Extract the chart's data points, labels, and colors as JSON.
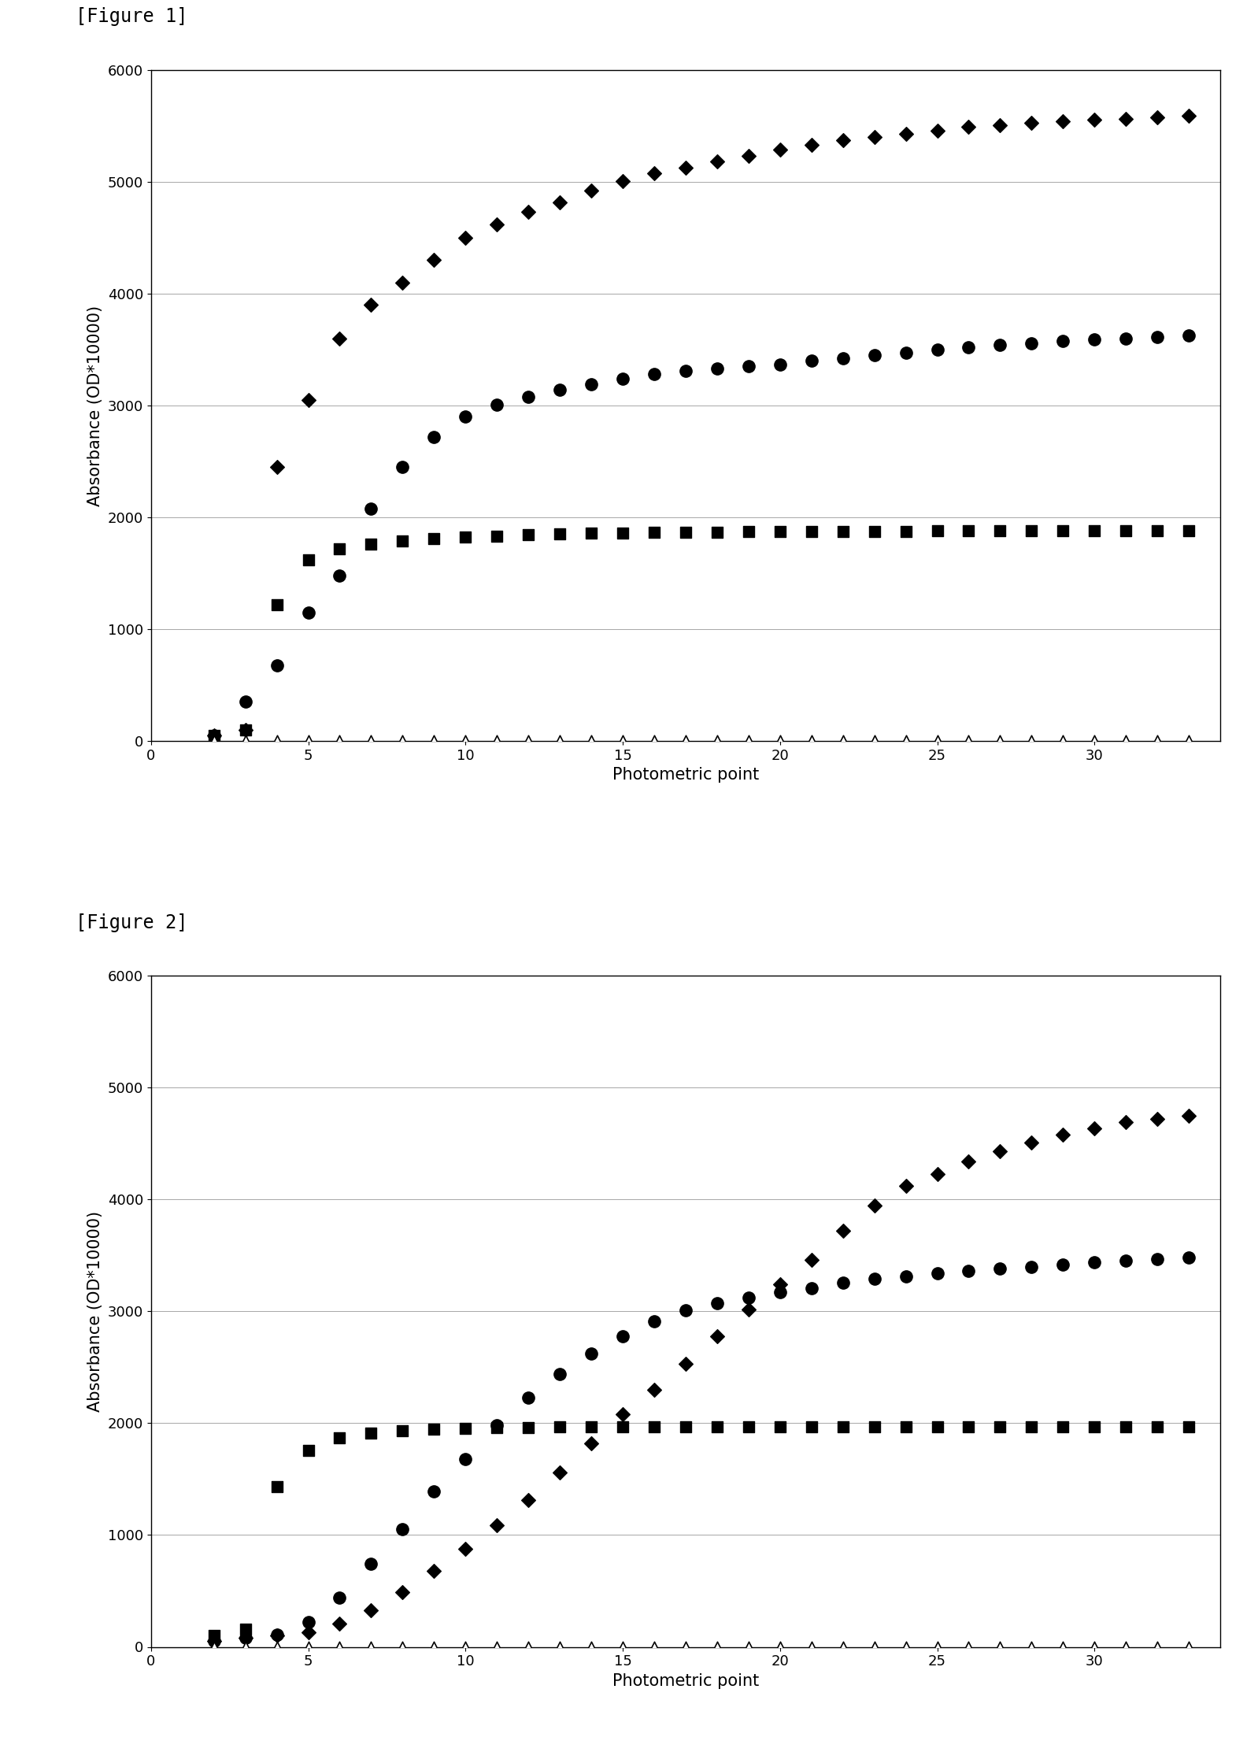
{
  "fig1": {
    "title": "[Figure 1]",
    "xlabel": "Photometric point",
    "ylabel": "Absorbance (OD*10000)",
    "xlim": [
      0,
      34
    ],
    "ylim": [
      0,
      6000
    ],
    "yticks": [
      0,
      1000,
      2000,
      3000,
      4000,
      5000,
      6000
    ],
    "xticks": [
      0,
      5,
      10,
      15,
      20,
      25,
      30
    ],
    "series": {
      "diamond": {
        "x": [
          2,
          3,
          4,
          5,
          6,
          7,
          8,
          9,
          10,
          11,
          12,
          13,
          14,
          15,
          16,
          17,
          18,
          19,
          20,
          21,
          22,
          23,
          24,
          25,
          26,
          27,
          28,
          29,
          30,
          31,
          32,
          33
        ],
        "y": [
          50,
          100,
          2450,
          3050,
          3600,
          3900,
          4100,
          4300,
          4500,
          4620,
          4730,
          4820,
          4920,
          5010,
          5080,
          5130,
          5180,
          5230,
          5290,
          5330,
          5370,
          5400,
          5430,
          5460,
          5490,
          5510,
          5530,
          5545,
          5555,
          5565,
          5575,
          5590
        ],
        "marker": "D",
        "color": "black",
        "size": 9
      },
      "circle": {
        "x": [
          2,
          3,
          4,
          5,
          6,
          7,
          8,
          9,
          10,
          11,
          12,
          13,
          14,
          15,
          16,
          17,
          18,
          19,
          20,
          21,
          22,
          23,
          24,
          25,
          26,
          27,
          28,
          29,
          30,
          31,
          32,
          33
        ],
        "y": [
          50,
          350,
          680,
          1150,
          1480,
          2080,
          2450,
          2720,
          2900,
          3010,
          3080,
          3140,
          3190,
          3240,
          3280,
          3310,
          3330,
          3350,
          3370,
          3400,
          3420,
          3450,
          3470,
          3500,
          3520,
          3540,
          3560,
          3575,
          3590,
          3600,
          3610,
          3625
        ],
        "marker": "o",
        "color": "black",
        "size": 11
      },
      "square": {
        "x": [
          2,
          3,
          4,
          5,
          6,
          7,
          8,
          9,
          10,
          11,
          12,
          13,
          14,
          15,
          16,
          17,
          18,
          19,
          20,
          21,
          22,
          23,
          24,
          25,
          26,
          27,
          28,
          29,
          30,
          31,
          32,
          33
        ],
        "y": [
          50,
          100,
          1220,
          1620,
          1720,
          1760,
          1790,
          1810,
          1825,
          1835,
          1845,
          1853,
          1858,
          1862,
          1865,
          1868,
          1870,
          1872,
          1874,
          1875,
          1876,
          1877,
          1877,
          1878,
          1878,
          1878,
          1879,
          1879,
          1879,
          1880,
          1880,
          1880
        ],
        "marker": "s",
        "color": "black",
        "size": 10
      },
      "triangle": {
        "x": [
          2,
          3,
          4,
          5,
          6,
          7,
          8,
          9,
          10,
          11,
          12,
          13,
          14,
          15,
          16,
          17,
          18,
          19,
          20,
          21,
          22,
          23,
          24,
          25,
          26,
          27,
          28,
          29,
          30,
          31,
          32,
          33
        ],
        "y": [
          5,
          5,
          5,
          5,
          5,
          5,
          5,
          5,
          5,
          5,
          5,
          5,
          5,
          5,
          5,
          5,
          5,
          5,
          5,
          5,
          5,
          5,
          5,
          5,
          5,
          5,
          5,
          5,
          5,
          5,
          5,
          5
        ],
        "marker": "^",
        "color": "white",
        "edgecolor": "black",
        "size": 9
      }
    }
  },
  "fig2": {
    "title": "[Figure 2]",
    "xlabel": "Photometric point",
    "ylabel": "Absorbance (OD*10000)",
    "xlim": [
      0,
      34
    ],
    "ylim": [
      0,
      6000
    ],
    "yticks": [
      0,
      1000,
      2000,
      3000,
      4000,
      5000,
      6000
    ],
    "xticks": [
      0,
      5,
      10,
      15,
      20,
      25,
      30
    ],
    "series": {
      "diamond": {
        "x": [
          2,
          3,
          4,
          5,
          6,
          7,
          8,
          9,
          10,
          11,
          12,
          13,
          14,
          15,
          16,
          17,
          18,
          19,
          20,
          21,
          22,
          23,
          24,
          25,
          26,
          27,
          28,
          29,
          30,
          31,
          32,
          33
        ],
        "y": [
          50,
          80,
          100,
          130,
          210,
          330,
          490,
          680,
          880,
          1090,
          1310,
          1560,
          1820,
          2080,
          2300,
          2530,
          2780,
          3020,
          3240,
          3460,
          3720,
          3950,
          4120,
          4230,
          4340,
          4430,
          4510,
          4580,
          4640,
          4690,
          4720,
          4750
        ],
        "marker": "D",
        "color": "black",
        "size": 9
      },
      "circle": {
        "x": [
          2,
          3,
          4,
          5,
          6,
          7,
          8,
          9,
          10,
          11,
          12,
          13,
          14,
          15,
          16,
          17,
          18,
          19,
          20,
          21,
          22,
          23,
          24,
          25,
          26,
          27,
          28,
          29,
          30,
          31,
          32,
          33
        ],
        "y": [
          50,
          80,
          110,
          220,
          440,
          740,
          1050,
          1390,
          1680,
          1980,
          2230,
          2440,
          2620,
          2780,
          2910,
          3010,
          3070,
          3120,
          3170,
          3210,
          3260,
          3290,
          3315,
          3340,
          3360,
          3385,
          3400,
          3420,
          3440,
          3455,
          3468,
          3480
        ],
        "marker": "o",
        "color": "black",
        "size": 11
      },
      "square": {
        "x": [
          2,
          3,
          4,
          5,
          6,
          7,
          8,
          9,
          10,
          11,
          12,
          13,
          14,
          15,
          16,
          17,
          18,
          19,
          20,
          21,
          22,
          23,
          24,
          25,
          26,
          27,
          28,
          29,
          30,
          31,
          32,
          33
        ],
        "y": [
          100,
          160,
          1430,
          1760,
          1870,
          1910,
          1930,
          1945,
          1955,
          1960,
          1963,
          1965,
          1966,
          1967,
          1968,
          1969,
          1970,
          1970,
          1970,
          1970,
          1970,
          1970,
          1970,
          1970,
          1970,
          1970,
          1970,
          1970,
          1970,
          1970,
          1970,
          1970
        ],
        "marker": "s",
        "color": "black",
        "size": 10
      },
      "triangle": {
        "x": [
          2,
          3,
          4,
          5,
          6,
          7,
          8,
          9,
          10,
          11,
          12,
          13,
          14,
          15,
          16,
          17,
          18,
          19,
          20,
          21,
          22,
          23,
          24,
          25,
          26,
          27,
          28,
          29,
          30,
          31,
          32,
          33
        ],
        "y": [
          5,
          5,
          5,
          5,
          5,
          5,
          5,
          5,
          5,
          5,
          5,
          5,
          5,
          5,
          5,
          5,
          5,
          5,
          5,
          5,
          5,
          5,
          5,
          5,
          5,
          5,
          5,
          5,
          5,
          5,
          5,
          5
        ],
        "marker": "^",
        "color": "white",
        "edgecolor": "black",
        "size": 9
      }
    }
  },
  "background_color": "#ffffff",
  "grid_color": "#999999",
  "label_fontsize": 15,
  "title_fontsize": 17,
  "tick_fontsize": 13
}
